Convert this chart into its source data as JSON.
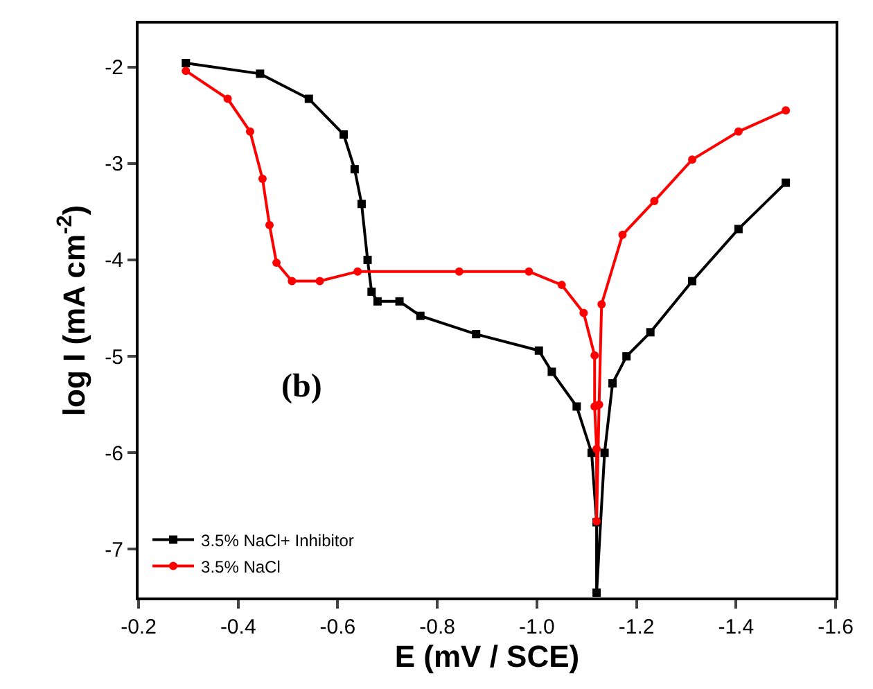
{
  "chart_data": {
    "type": "line",
    "xlabel": "E (mV / SCE)",
    "ylabel": "log I (mA cm$^{-2}$)",
    "xlim": [
      -0.2,
      -1.6
    ],
    "xticks": [
      -0.2,
      -0.4,
      -0.6,
      -0.8,
      {
        "value": -1.0,
        "label": "-1.0"
      },
      -1.2,
      -1.4,
      -1.6
    ],
    "ylim": [
      -7.5,
      -1.55
    ],
    "yticks": [
      -7,
      -6,
      -5,
      -4,
      -3,
      -2
    ],
    "legend": "bottom left",
    "line_style": "solid",
    "annotations": [
      "(b)"
    ],
    "series": [
      {
        "name": "3.5% NaCl+ Inhibitor",
        "color": "#000000",
        "marker": "square",
        "x": [
          -0.295,
          -0.444,
          -0.542,
          -0.612,
          -0.634,
          -0.648,
          -0.66,
          -0.668,
          -0.68,
          -0.724,
          -0.766,
          -0.878,
          -1.004,
          -1.03,
          -1.08,
          -1.11,
          -1.12,
          -1.12,
          -1.136,
          -1.152,
          -1.18,
          -1.228,
          -1.312,
          -1.405,
          -1.5
        ],
        "values": [
          -1.96,
          -2.07,
          -2.33,
          -2.7,
          -3.06,
          -3.42,
          -4.0,
          -4.33,
          -4.43,
          -4.43,
          -4.58,
          -4.77,
          -4.94,
          -5.16,
          -5.52,
          -6.0,
          -6.72,
          -7.45,
          -6.0,
          -5.28,
          -5.0,
          -4.75,
          -4.22,
          -3.68,
          -3.2
        ]
      },
      {
        "name": "3.5% NaCl",
        "color": "#ff0000",
        "marker": "circle",
        "x": [
          -0.295,
          -0.379,
          -0.424,
          -0.449,
          -0.463,
          -0.477,
          -0.508,
          -0.564,
          -0.64,
          -0.844,
          -0.984,
          -1.05,
          -1.094,
          -1.116,
          -1.116,
          -1.12,
          -1.12,
          -1.125,
          -1.13,
          -1.172,
          -1.236,
          -1.312,
          -1.405,
          -1.5
        ],
        "values": [
          -2.04,
          -2.33,
          -2.67,
          -3.16,
          -3.64,
          -4.03,
          -4.22,
          -4.22,
          -4.12,
          -4.12,
          -4.12,
          -4.26,
          -4.55,
          -4.99,
          -5.52,
          -5.96,
          -6.71,
          -5.5,
          -4.46,
          -3.74,
          -3.39,
          -2.96,
          -2.67,
          -2.45
        ]
      }
    ]
  }
}
